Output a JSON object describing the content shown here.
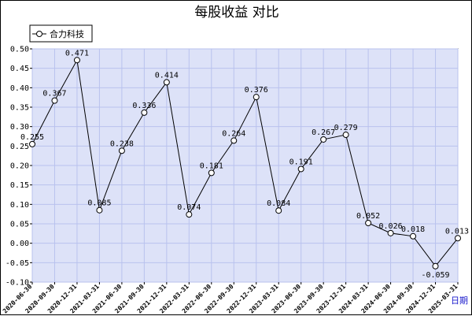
{
  "chart_data": {
    "type": "line",
    "title": "每股收益  对比",
    "xlabel": "日期",
    "ylabel": "",
    "ylim": [
      -0.1,
      0.5
    ],
    "yticks": [
      "0.50",
      "0.45",
      "0.40",
      "0.35",
      "0.30",
      "0.25",
      "0.20",
      "0.15",
      "0.10",
      "0.05",
      "0.00",
      "-0.05",
      "-0.10"
    ],
    "grid": true,
    "legend_position": "top-left",
    "colors": {
      "plot_background": "#dde2f8",
      "grid": "#b9c2ee",
      "line": "#000000",
      "marker_fill": "#ffffff"
    },
    "categories": [
      "2020-06-30",
      "2020-09-30",
      "2020-12-31",
      "2021-03-31",
      "2021-06-30",
      "2021-09-30",
      "2021-12-31",
      "2022-03-31",
      "2022-06-30",
      "2022-09-30",
      "2022-12-31",
      "2023-03-31",
      "2023-06-30",
      "2023-09-30",
      "2023-12-31",
      "2024-03-31",
      "2024-06-30",
      "2024-09-30",
      "2024-12-31",
      "2025-03-31"
    ],
    "series": [
      {
        "name": "合力科技",
        "values": [
          0.255,
          0.367,
          0.471,
          0.085,
          0.238,
          0.336,
          0.414,
          0.074,
          0.181,
          0.264,
          0.376,
          0.084,
          0.191,
          0.267,
          0.279,
          0.052,
          0.026,
          0.018,
          -0.059,
          0.013
        ],
        "labels": [
          "0.255",
          "0.367",
          "0.471",
          "0.085",
          "0.238",
          "0.336",
          "0.414",
          "0.074",
          "0.181",
          "0.264",
          "0.376",
          "0.084",
          "0.191",
          "0.267",
          "0.279",
          "0.052",
          "0.026",
          "0.018",
          "-0.059",
          "0.013"
        ]
      }
    ]
  }
}
